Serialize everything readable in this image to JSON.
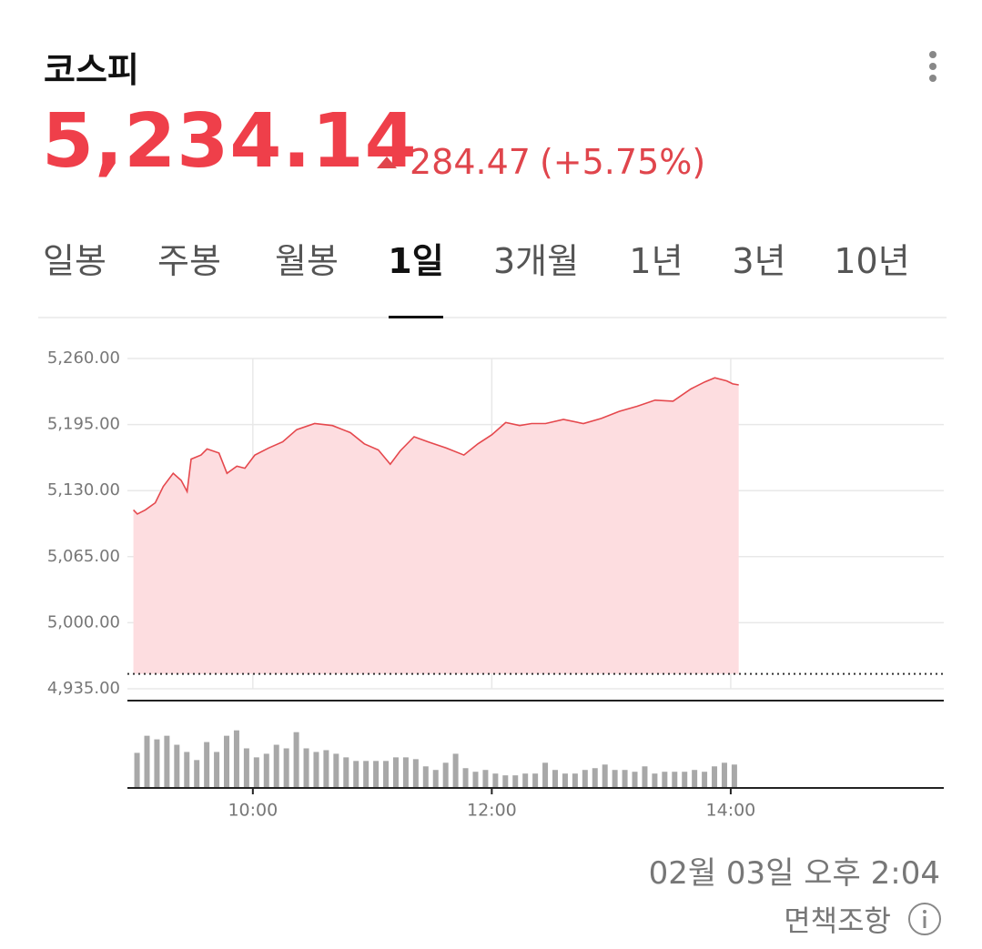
{
  "header": {
    "title": "코스피",
    "price": "5,234.14",
    "change": "284.47",
    "change_pct": "(+5.75%)"
  },
  "tabs": {
    "items": [
      "일봉",
      "주봉",
      "월봉",
      "1일",
      "3개월",
      "1년",
      "3년",
      "10년"
    ],
    "active": 3
  },
  "chart_data": [
    {
      "type": "area",
      "color": "#e5484d",
      "fill_color": "#fddde0",
      "grid": true,
      "x": [
        540,
        542,
        546,
        551,
        555,
        560,
        564,
        567,
        569,
        574,
        577,
        583,
        587,
        592,
        596,
        601,
        608,
        615,
        622,
        631,
        640,
        649,
        656,
        663,
        669,
        674,
        681,
        688,
        697,
        706,
        713,
        720,
        727,
        734,
        740,
        747,
        756,
        766,
        775,
        784,
        793,
        802,
        811,
        820,
        827,
        832,
        838,
        841,
        844
      ],
      "series": [
        {
          "values": [
            5111,
            5107,
            5111,
            5118,
            5134,
            5147,
            5140,
            5129,
            5161,
            5165,
            5171,
            5167,
            5147,
            5154,
            5152,
            5165,
            5172,
            5178,
            5190,
            5196,
            5194,
            5187,
            5176,
            5170,
            5156,
            5169,
            5183,
            5178,
            5172,
            5165,
            5176,
            5185,
            5197,
            5194,
            5196,
            5196,
            5200,
            5196,
            5201,
            5208,
            5213,
            5219,
            5218,
            5230,
            5237,
            5241,
            5238,
            5235,
            5234
          ]
        }
      ],
      "baseline": 4949.67,
      "xlim": [
        537,
        947
      ],
      "xticks": [
        {
          "value": 600,
          "label": "10:00"
        },
        {
          "value": 720,
          "label": "12:00"
        },
        {
          "value": 840,
          "label": "14:00"
        }
      ],
      "ylim": [
        4935,
        5260
      ],
      "yticks": [
        {
          "value": 4935,
          "label": "4,935.00"
        },
        {
          "value": 5000,
          "label": "5,000.00"
        },
        {
          "value": 5065,
          "label": "5,065.00"
        },
        {
          "value": 5130,
          "label": "5,130.00"
        },
        {
          "value": 5195,
          "label": "5,195.00"
        },
        {
          "value": 5260,
          "label": "5,260.00"
        }
      ]
    },
    {
      "type": "bar",
      "color": "#a8a8a8",
      "x": [
        540,
        545,
        550,
        555,
        560,
        565,
        570,
        575,
        580,
        585,
        590,
        595,
        600,
        605,
        610,
        615,
        620,
        625,
        630,
        635,
        640,
        645,
        650,
        655,
        660,
        665,
        670,
        675,
        680,
        685,
        690,
        695,
        700,
        705,
        710,
        715,
        720,
        725,
        730,
        735,
        740,
        745,
        750,
        755,
        760,
        765,
        770,
        775,
        780,
        785,
        790,
        795,
        800,
        805,
        810,
        815,
        820,
        825,
        830,
        835,
        840
      ],
      "values": [
        39,
        58,
        54,
        58,
        48,
        40,
        31,
        51,
        40,
        58,
        64,
        44,
        34,
        38,
        48,
        44,
        62,
        44,
        40,
        42,
        38,
        34,
        30,
        30,
        30,
        30,
        34,
        34,
        32,
        24,
        20,
        28,
        38,
        22,
        18,
        20,
        16,
        14,
        14,
        16,
        16,
        28,
        20,
        16,
        16,
        20,
        22,
        26,
        20,
        20,
        18,
        24,
        16,
        18,
        18,
        18,
        20,
        18,
        24,
        28,
        26
      ],
      "xlim": [
        537,
        947
      ],
      "ylim": [
        0,
        91
      ]
    }
  ],
  "footer": {
    "timestamp": "02월 03일 오후 2:04",
    "disclaimer": "면책조항"
  }
}
